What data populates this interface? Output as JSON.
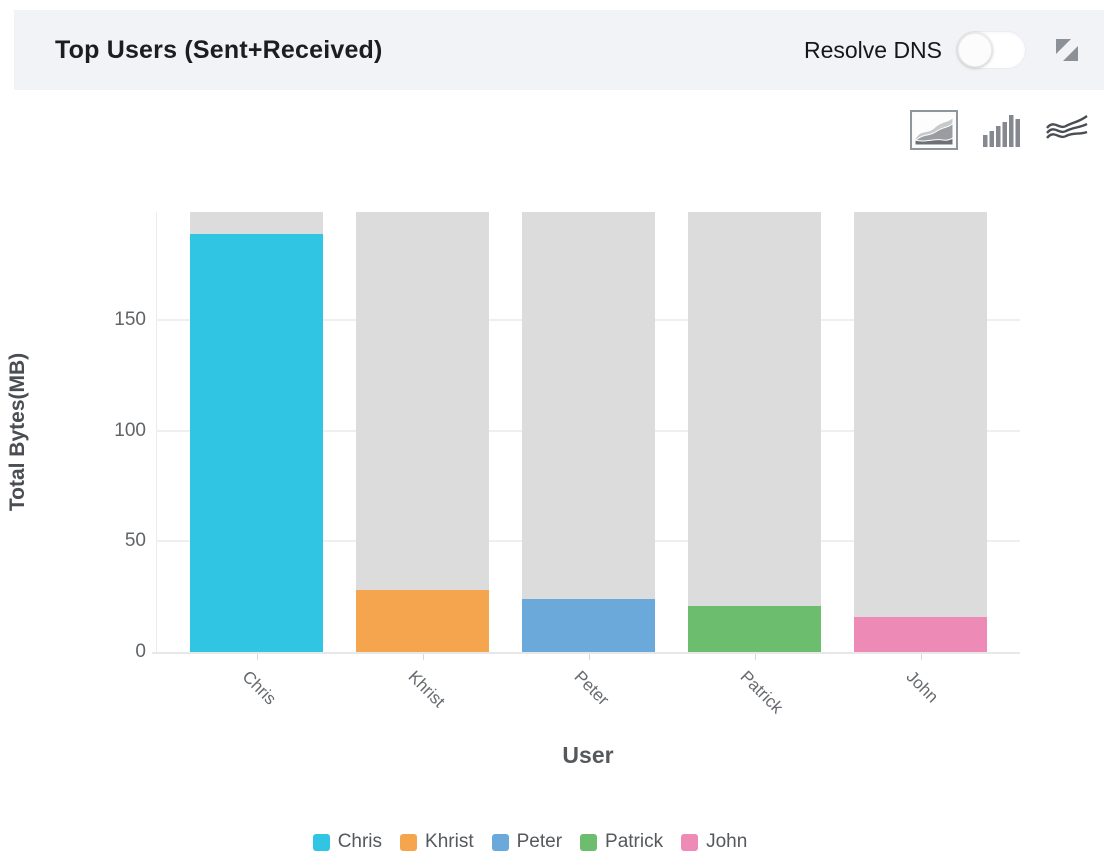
{
  "header": {
    "title": "Top Users (Sent+Received)",
    "resolve_dns_label": "Resolve DNS",
    "resolve_dns_state": "off"
  },
  "toolbar": {
    "chart_types": [
      {
        "name": "area-chart",
        "selected": true
      },
      {
        "name": "bar-chart",
        "selected": false
      },
      {
        "name": "stream-chart",
        "selected": false
      }
    ]
  },
  "chart_data": {
    "type": "bar",
    "title": "Top Users (Sent+Received)",
    "categories": [
      "Chris",
      "Khrist",
      "Peter",
      "Patrick",
      "John"
    ],
    "values": [
      189,
      28,
      24,
      21,
      16
    ],
    "series_colors": [
      "#30c5e2",
      "#f6a54f",
      "#6ba9da",
      "#6cbd6d",
      "#ee8ab6"
    ],
    "track_color": "#dcdcdc",
    "track_value": 199,
    "xlabel": "User",
    "ylabel": "Total Bytes(MB)",
    "ylim": [
      0,
      199
    ],
    "yticks": [
      0,
      50,
      100,
      150
    ],
    "grid": true,
    "legend_position": "bottom",
    "legend": [
      "Chris",
      "Khrist",
      "Peter",
      "Patrick",
      "John"
    ]
  }
}
